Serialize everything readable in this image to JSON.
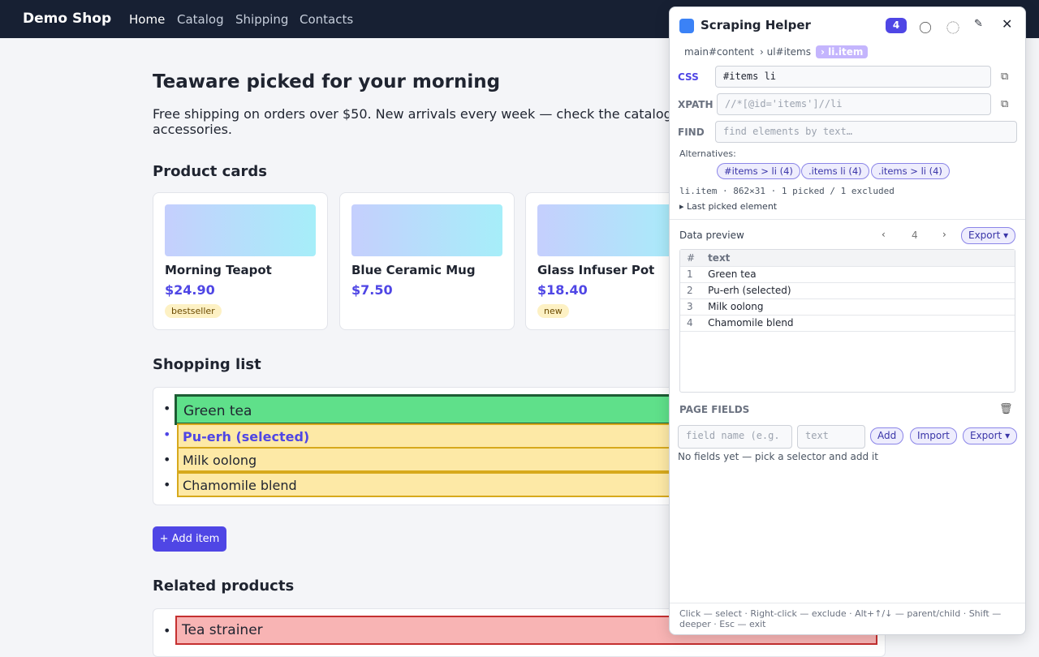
{
  "nav": {
    "brand": "Demo Shop",
    "links": [
      "Home",
      "Catalog",
      "Shipping",
      "Contacts"
    ]
  },
  "main": {
    "title": "Teaware picked for your morning",
    "intro": [
      "Free shipping on orders over $50. New arrivals every week — check the catalog",
      "accessories."
    ],
    "cards_heading": "Product cards",
    "cards": [
      {
        "name": "Morning Teapot",
        "price": "$24.90",
        "tag": "bestseller"
      },
      {
        "name": "Blue Ceramic Mug",
        "price": "$7.50"
      },
      {
        "name": "Glass Infuser Pot",
        "price": "$18.40",
        "tag": "new"
      }
    ],
    "list_heading": "Shopping list",
    "list": [
      "Green tea",
      "Pu-erh (selected)",
      "Milk oolong",
      "Chamomile blend"
    ],
    "add_button": "+ Add item",
    "related_heading": "Related products",
    "related": [
      "Tea strainer"
    ]
  },
  "panel": {
    "title": "Scraping Helper",
    "count": "4",
    "breadcrumbs": [
      "main#content",
      "› ul#items",
      "› li.item"
    ],
    "css_label": "CSS",
    "css_value": "#items li",
    "xpath_label": "XPATH",
    "xpath_value": "//*[@id='items']//li",
    "find_label": "FIND",
    "find_placeholder": "find elements by text…",
    "alternatives_label": "Alternatives:",
    "alternatives": [
      "#items > li (4)",
      ".items li (4)",
      ".items > li (4)"
    ],
    "status": "li.item · 862×31 · 1 picked / 1 excluded",
    "last_picked": "Last picked element",
    "preview_label": "Data preview",
    "prev": "‹",
    "page": "4",
    "next": "›",
    "export": "Export ▾",
    "table": {
      "header": [
        "#",
        "text"
      ],
      "rows": [
        [
          "1",
          "Green tea"
        ],
        [
          "2",
          "Pu-erh (selected)"
        ],
        [
          "3",
          "Milk oolong"
        ],
        [
          "4",
          "Chamomile blend"
        ]
      ]
    },
    "fields_label": "PAGE FIELDS",
    "field_name_placeholder": "field name (e.g.",
    "field_type": "text",
    "add": "Add",
    "import": "Import",
    "fields_export": "Export ▾",
    "empty_note": "No fields yet — pick a selector and add it",
    "footer": "Click — select · Right-click — exclude · Alt+↑/↓ — parent/child · Shift — deeper · Esc — exit"
  }
}
